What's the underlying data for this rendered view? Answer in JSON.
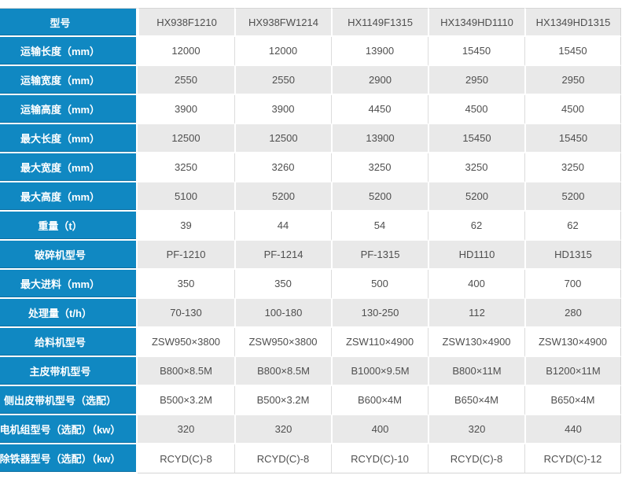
{
  "table": {
    "header": {
      "label": "型号",
      "models": [
        "HX938F1210",
        "HX938FW1214",
        "HX1149F1315",
        "HX1349HD1110",
        "HX1349HD1315"
      ]
    },
    "rows": [
      {
        "label": "运输长度（mm）",
        "values": [
          "12000",
          "12000",
          "13900",
          "15450",
          "15450"
        ]
      },
      {
        "label": "运输宽度（mm）",
        "values": [
          "2550",
          "2550",
          "2900",
          "2950",
          "2950"
        ]
      },
      {
        "label": "运输高度（mm）",
        "values": [
          "3900",
          "3900",
          "4450",
          "4500",
          "4500"
        ]
      },
      {
        "label": "最大长度（mm）",
        "values": [
          "12500",
          "12500",
          "13900",
          "15450",
          "15450"
        ]
      },
      {
        "label": "最大宽度（mm）",
        "values": [
          "3250",
          "3260",
          "3250",
          "3250",
          "3250"
        ]
      },
      {
        "label": "最大高度（mm）",
        "values": [
          "5100",
          "5200",
          "5200",
          "5200",
          "5200"
        ]
      },
      {
        "label": "重量（t）",
        "values": [
          "39",
          "44",
          "54",
          "62",
          "62"
        ]
      },
      {
        "label": "破碎机型号",
        "values": [
          "PF-1210",
          "PF-1214",
          "PF-1315",
          "HD1110",
          "HD1315"
        ]
      },
      {
        "label": "最大进料（mm）",
        "values": [
          "350",
          "350",
          "500",
          "400",
          "700"
        ]
      },
      {
        "label": "处理量（t/h）",
        "values": [
          "70-130",
          "100-180",
          "130-250",
          "112",
          "280"
        ]
      },
      {
        "label": "给料机型号",
        "values": [
          "ZSW950×3800",
          "ZSW950×3800",
          "ZSW110×4900",
          "ZSW130×4900",
          "ZSW130×4900"
        ]
      },
      {
        "label": "主皮带机型号",
        "values": [
          "B800×8.5M",
          "B800×8.5M",
          "B1000×9.5M",
          "B800×11M",
          "B1200×11M"
        ]
      },
      {
        "label": "侧出皮带机型号（选配）",
        "values": [
          "B500×3.2M",
          "B500×3.2M",
          "B600×4M",
          "B650×4M",
          "B650×4M"
        ]
      },
      {
        "label": "电机组型号（选配）（kw）",
        "values": [
          "320",
          "320",
          "400",
          "320",
          "440"
        ]
      },
      {
        "label": "除铁器型号（选配）（kw）",
        "values": [
          "RCYD(C)-8",
          "RCYD(C)-8",
          "RCYD(C)-10",
          "RCYD(C)-8",
          "RCYD(C)-12"
        ]
      }
    ],
    "colors": {
      "accent_blue": "#1088c2",
      "row_alt_gray": "#e9e9e9",
      "row_white": "#ffffff",
      "text_dark": "#4f4f4f",
      "label_text": "#ffffff",
      "border_gray": "#d5d5d5"
    }
  }
}
